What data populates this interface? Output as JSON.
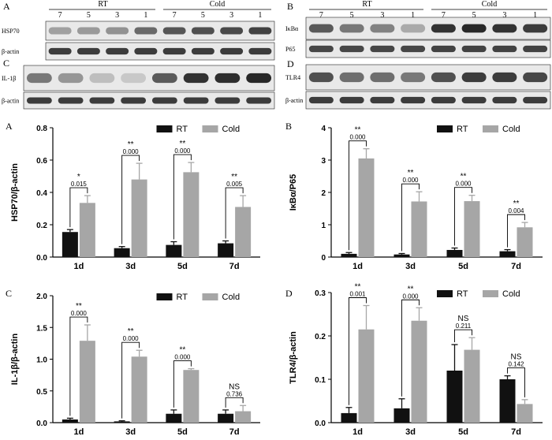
{
  "blots": [
    {
      "panel_letter": "A",
      "group_left": "RT",
      "group_right": "Cold",
      "lanes": [
        "7",
        "5",
        "3",
        "1",
        "7",
        "5",
        "3",
        "1"
      ],
      "rows": [
        {
          "label": "HSP70",
          "intensity": [
            0.35,
            0.38,
            0.42,
            0.62,
            0.72,
            0.75,
            0.78,
            0.82
          ]
        },
        {
          "label": "β-actin",
          "intensity": [
            0.85,
            0.85,
            0.85,
            0.85,
            0.85,
            0.85,
            0.85,
            0.85
          ]
        }
      ]
    },
    {
      "panel_letter": "B",
      "group_left": "RT",
      "group_right": "Cold",
      "lanes": [
        "7",
        "5",
        "3",
        "1",
        "7",
        "5",
        "3",
        "1"
      ],
      "rows": [
        {
          "label": "IκBα",
          "intensity": [
            0.7,
            0.55,
            0.5,
            0.3,
            0.9,
            0.95,
            0.9,
            0.85
          ]
        },
        {
          "label": "P65",
          "intensity": [
            0.8,
            0.8,
            0.8,
            0.8,
            0.82,
            0.82,
            0.82,
            0.82
          ]
        }
      ]
    },
    {
      "panel_letter": "C",
      "lanes": [],
      "rows": [
        {
          "label": "IL-1β",
          "intensity": [
            0.55,
            0.4,
            0.2,
            0.15,
            0.7,
            0.9,
            0.92,
            0.95
          ]
        },
        {
          "label": "β-actin",
          "intensity": [
            0.85,
            0.85,
            0.85,
            0.85,
            0.85,
            0.85,
            0.85,
            0.85
          ]
        }
      ]
    },
    {
      "panel_letter": "D",
      "lanes": [],
      "rows": [
        {
          "label": "TLR4",
          "intensity": [
            0.75,
            0.6,
            0.6,
            0.55,
            0.75,
            0.85,
            0.85,
            0.8
          ]
        },
        {
          "label": "β-actin",
          "intensity": [
            0.85,
            0.85,
            0.85,
            0.85,
            0.85,
            0.85,
            0.85,
            0.85
          ]
        }
      ]
    }
  ],
  "colors": {
    "rt": "#111111",
    "cold": "#a6a6a6"
  },
  "chart_data": [
    {
      "type": "bar",
      "panel_letter": "A",
      "categories": [
        "1d",
        "3d",
        "5d",
        "7d"
      ],
      "series": [
        {
          "name": "RT",
          "values": [
            0.155,
            0.055,
            0.075,
            0.085
          ],
          "errors": [
            0.015,
            0.01,
            0.02,
            0.015
          ]
        },
        {
          "name": "Cold",
          "values": [
            0.335,
            0.48,
            0.525,
            0.31
          ],
          "errors": [
            0.045,
            0.1,
            0.06,
            0.07
          ]
        }
      ],
      "ylabel": "HSP70/β-actin",
      "ylim": [
        0,
        0.8
      ],
      "yticks": [
        "0.0",
        "0.2",
        "0.4",
        "0.6",
        "0.8"
      ],
      "stars": [
        "*",
        "**",
        "**",
        "**"
      ],
      "pvalues": [
        "0.015",
        "0.000",
        "0.000",
        "0.005"
      ]
    },
    {
      "type": "bar",
      "panel_letter": "B",
      "categories": [
        "1d",
        "3d",
        "5d",
        "7d"
      ],
      "series": [
        {
          "name": "RT",
          "values": [
            0.1,
            0.08,
            0.22,
            0.18
          ],
          "errors": [
            0.04,
            0.03,
            0.06,
            0.05
          ]
        },
        {
          "name": "Cold",
          "values": [
            3.05,
            1.72,
            1.73,
            0.92
          ],
          "errors": [
            0.3,
            0.3,
            0.18,
            0.15
          ]
        }
      ],
      "ylabel": "IκBα/P65",
      "ylim": [
        0,
        4
      ],
      "yticks": [
        "0",
        "1",
        "2",
        "3",
        "4"
      ],
      "stars": [
        "**",
        "**",
        "**",
        "**"
      ],
      "pvalues": [
        "0.000",
        "0.000",
        "0.000",
        "0.004"
      ]
    },
    {
      "type": "bar",
      "panel_letter": "C",
      "categories": [
        "1d",
        "3d",
        "5d",
        "7d"
      ],
      "series": [
        {
          "name": "RT",
          "values": [
            0.05,
            0.02,
            0.14,
            0.14
          ],
          "errors": [
            0.02,
            0.01,
            0.06,
            0.06
          ]
        },
        {
          "name": "Cold",
          "values": [
            1.29,
            1.04,
            0.83,
            0.18
          ],
          "errors": [
            0.25,
            0.1,
            0.02,
            0.09
          ]
        }
      ],
      "ylabel": "IL-1β/β-actin",
      "ylim": [
        0,
        2.0
      ],
      "yticks": [
        "0.0",
        "0.5",
        "1.0",
        "1.5",
        "2.0"
      ],
      "stars": [
        "**",
        "**",
        "**",
        "NS"
      ],
      "pvalues": [
        "0.000",
        "0.000",
        "0.000",
        "0.736"
      ]
    },
    {
      "type": "bar",
      "panel_letter": "D",
      "categories": [
        "1d",
        "3d",
        "5d",
        "7d"
      ],
      "series": [
        {
          "name": "RT",
          "values": [
            0.022,
            0.033,
            0.12,
            0.1
          ],
          "errors": [
            0.013,
            0.022,
            0.06,
            0.008
          ]
        },
        {
          "name": "Cold",
          "values": [
            0.215,
            0.235,
            0.168,
            0.043
          ],
          "errors": [
            0.055,
            0.03,
            0.028,
            0.01
          ]
        }
      ],
      "ylabel": "TLR4/β-actin",
      "ylim": [
        0,
        0.3
      ],
      "yticks": [
        "0.0",
        "0.1",
        "0.2",
        "0.3"
      ],
      "stars": [
        "**",
        "**",
        "NS",
        "NS"
      ],
      "pvalues": [
        "0.001",
        "0.000",
        "0.211",
        "0.142"
      ]
    }
  ]
}
